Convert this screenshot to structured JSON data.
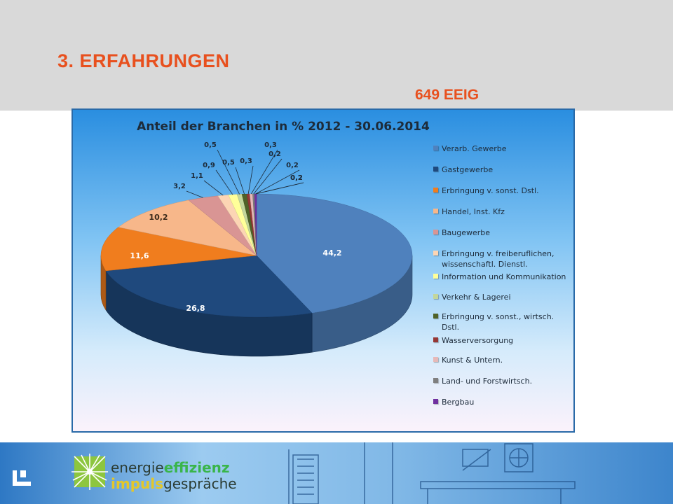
{
  "slide": {
    "title": "3. ERFAHRUNGEN",
    "subtitle": "649 EEIG"
  },
  "chart_data": {
    "type": "pie",
    "title": "Anteil der Branchen in % 2012 - 30.06.2014",
    "legend_position": "right",
    "slices": [
      {
        "label": "Verarb. Gewerbe",
        "value": 44.2,
        "display": "44,2",
        "color": "#4f81bd"
      },
      {
        "label": "Gastgewerbe",
        "value": 26.8,
        "display": "26,8",
        "color": "#1f497d"
      },
      {
        "label": "Erbringung v. sonst. Dstl.",
        "value": 11.6,
        "display": "11,6",
        "color": "#f07d1e"
      },
      {
        "label": "Handel, Inst. Kfz",
        "value": 10.2,
        "display": "10,2",
        "color": "#f7b78a"
      },
      {
        "label": "Baugewerbe",
        "value": 3.2,
        "display": "3,2",
        "color": "#d99594"
      },
      {
        "label": "Erbringung v. freiberuflichen, wissenschaftl. Dienstl.",
        "value": 1.1,
        "display": "1,1",
        "color": "#fcd5b4"
      },
      {
        "label": "Information und Kommunikation",
        "value": 0.9,
        "display": "0,9",
        "color": "#ffff99"
      },
      {
        "label": "Verkehr & Lagerei",
        "value": 0.5,
        "display": "0,5",
        "color": "#c3d69b"
      },
      {
        "label": "Erbringung v. sonst., wirtsch. Dstl.",
        "value": 0.5,
        "display": "0,5",
        "color": "#4f6228"
      },
      {
        "label": "Wasserversorgung",
        "value": 0.3,
        "display": "0,3",
        "color": "#953735"
      },
      {
        "label": "Kunst & Untern.",
        "value": 0.3,
        "display": "0,3",
        "color": "#e6b9b8"
      },
      {
        "label": "Land- und Forstwirtsch.",
        "value": 0.2,
        "display": "0,2",
        "color": "#7f7f7f"
      },
      {
        "label": "Bergbau",
        "value": 0.2,
        "display": "0,2",
        "color": "#7030a0"
      }
    ],
    "extra_data_labels": [
      "0,2",
      "0,2"
    ]
  },
  "footer": {
    "brand_part1": "energie",
    "brand_part2": "effizienz",
    "brand_part3": "impuls",
    "brand_part4": "gespräche"
  }
}
